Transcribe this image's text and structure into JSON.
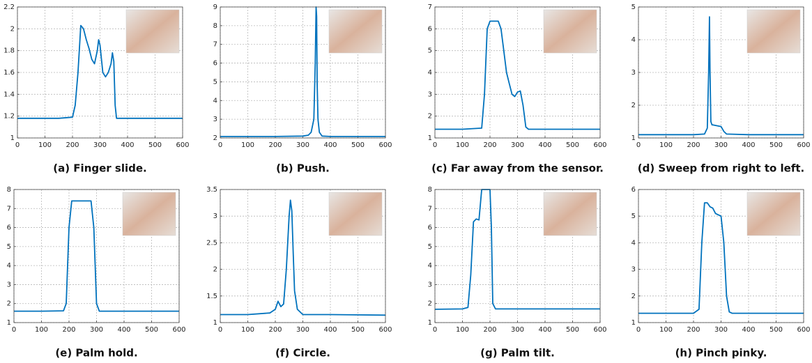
{
  "chart_data": [
    {
      "type": "line",
      "title": "(a) Finger slide.",
      "xlim": [
        0,
        600
      ],
      "xticks": [
        0,
        100,
        200,
        300,
        400,
        500,
        600
      ],
      "ylim": [
        1,
        2.2
      ],
      "yticks": [
        1,
        1.2,
        1.4,
        1.6,
        1.8,
        2,
        2.2
      ],
      "grid": true,
      "x": [
        0,
        50,
        100,
        150,
        200,
        210,
        220,
        230,
        240,
        250,
        260,
        270,
        280,
        290,
        295,
        300,
        310,
        320,
        330,
        340,
        345,
        350,
        355,
        360,
        400,
        500,
        600
      ],
      "series": [
        {
          "color": "#0072bd",
          "values": [
            1.18,
            1.18,
            1.18,
            1.18,
            1.19,
            1.3,
            1.6,
            2.03,
            2.0,
            1.9,
            1.82,
            1.72,
            1.68,
            1.8,
            1.9,
            1.85,
            1.6,
            1.56,
            1.6,
            1.68,
            1.78,
            1.7,
            1.3,
            1.18,
            1.18,
            1.18,
            1.18
          ]
        }
      ]
    },
    {
      "type": "line",
      "title": "(b) Push.",
      "xlim": [
        0,
        600
      ],
      "xticks": [
        0,
        100,
        200,
        300,
        400,
        500,
        600
      ],
      "ylim": [
        2,
        9
      ],
      "yticks": [
        2,
        3,
        4,
        5,
        6,
        7,
        8,
        9
      ],
      "grid": true,
      "x": [
        0,
        100,
        200,
        300,
        320,
        330,
        340,
        345,
        348,
        350,
        352,
        355,
        360,
        370,
        400,
        500,
        600
      ],
      "series": [
        {
          "color": "#0072bd",
          "values": [
            2.08,
            2.08,
            2.08,
            2.1,
            2.15,
            2.3,
            3,
            6,
            9,
            8.5,
            5,
            3,
            2.3,
            2.1,
            2.08,
            2.08,
            2.08
          ]
        }
      ]
    },
    {
      "type": "line",
      "title": "(c) Far away from the sensor.",
      "xlim": [
        0,
        600
      ],
      "xticks": [
        0,
        100,
        200,
        300,
        400,
        500,
        600
      ],
      "ylim": [
        1,
        7
      ],
      "yticks": [
        1,
        2,
        3,
        4,
        5,
        6,
        7
      ],
      "grid": true,
      "x": [
        0,
        100,
        170,
        180,
        190,
        200,
        230,
        240,
        250,
        260,
        270,
        280,
        290,
        300,
        310,
        320,
        330,
        340,
        600
      ],
      "series": [
        {
          "color": "#0072bd",
          "values": [
            1.4,
            1.4,
            1.45,
            3,
            6,
            6.35,
            6.35,
            6,
            5,
            4,
            3.5,
            3,
            2.9,
            3.1,
            3.15,
            2.5,
            1.5,
            1.4,
            1.4
          ]
        }
      ]
    },
    {
      "type": "line",
      "title": "(d) Sweep from right to left.",
      "xlim": [
        0,
        600
      ],
      "xticks": [
        0,
        100,
        200,
        300,
        400,
        500,
        600
      ],
      "ylim": [
        1,
        5
      ],
      "yticks": [
        1,
        2,
        3,
        4,
        5
      ],
      "grid": true,
      "x": [
        0,
        100,
        200,
        240,
        250,
        255,
        258,
        260,
        263,
        267,
        270,
        300,
        310,
        320,
        400,
        600
      ],
      "series": [
        {
          "color": "#0072bd",
          "values": [
            1.1,
            1.1,
            1.1,
            1.12,
            1.3,
            3,
            4.7,
            3,
            1.5,
            1.4,
            1.4,
            1.35,
            1.2,
            1.12,
            1.1,
            1.1
          ]
        }
      ]
    },
    {
      "type": "line",
      "title": "(e) Palm hold.",
      "xlim": [
        0,
        600
      ],
      "xticks": [
        0,
        100,
        200,
        300,
        400,
        500,
        600
      ],
      "ylim": [
        1,
        8
      ],
      "yticks": [
        1,
        2,
        3,
        4,
        5,
        6,
        7,
        8
      ],
      "grid": true,
      "x": [
        0,
        100,
        180,
        190,
        200,
        210,
        280,
        290,
        300,
        310,
        400,
        600
      ],
      "series": [
        {
          "color": "#0072bd",
          "values": [
            1.6,
            1.6,
            1.62,
            2,
            6,
            7.4,
            7.4,
            6,
            2,
            1.6,
            1.6,
            1.6
          ]
        }
      ]
    },
    {
      "type": "line",
      "title": "(f) Circle.",
      "xlim": [
        0,
        600
      ],
      "xticks": [
        0,
        100,
        200,
        300,
        400,
        500,
        600
      ],
      "ylim": [
        1,
        3.5
      ],
      "yticks": [
        1,
        1.5,
        2,
        2.5,
        3,
        3.5
      ],
      "grid": true,
      "x": [
        0,
        100,
        180,
        200,
        210,
        220,
        230,
        240,
        250,
        255,
        260,
        265,
        270,
        280,
        300,
        400,
        600
      ],
      "series": [
        {
          "color": "#0072bd",
          "values": [
            1.15,
            1.15,
            1.18,
            1.25,
            1.4,
            1.3,
            1.35,
            2,
            3,
            3.3,
            3.1,
            2.3,
            1.6,
            1.25,
            1.15,
            1.15,
            1.14
          ]
        }
      ]
    },
    {
      "type": "line",
      "title": "(g) Palm tilt.",
      "xlim": [
        0,
        600
      ],
      "xticks": [
        0,
        100,
        200,
        300,
        400,
        500,
        600
      ],
      "ylim": [
        1,
        8
      ],
      "yticks": [
        1,
        2,
        3,
        4,
        5,
        6,
        7,
        8
      ],
      "grid": true,
      "x": [
        0,
        100,
        120,
        130,
        140,
        150,
        160,
        170,
        200,
        205,
        210,
        220,
        300,
        600
      ],
      "series": [
        {
          "color": "#0072bd",
          "values": [
            1.7,
            1.72,
            1.8,
            3.5,
            6.3,
            6.45,
            6.4,
            8,
            8,
            6,
            2,
            1.72,
            1.72,
            1.72
          ]
        }
      ]
    },
    {
      "type": "line",
      "title": "(h) Pinch pinky.",
      "xlim": [
        0,
        600
      ],
      "xticks": [
        0,
        100,
        200,
        300,
        400,
        500,
        600
      ],
      "ylim": [
        1,
        6
      ],
      "yticks": [
        1,
        2,
        3,
        4,
        5,
        6
      ],
      "grid": true,
      "x": [
        0,
        200,
        220,
        230,
        240,
        250,
        260,
        270,
        280,
        290,
        300,
        310,
        320,
        330,
        340,
        600
      ],
      "series": [
        {
          "color": "#0072bd",
          "values": [
            1.35,
            1.35,
            1.5,
            4,
            5.5,
            5.5,
            5.35,
            5.3,
            5.1,
            5.05,
            5.0,
            4,
            2,
            1.4,
            1.35,
            1.35
          ]
        }
      ]
    }
  ]
}
